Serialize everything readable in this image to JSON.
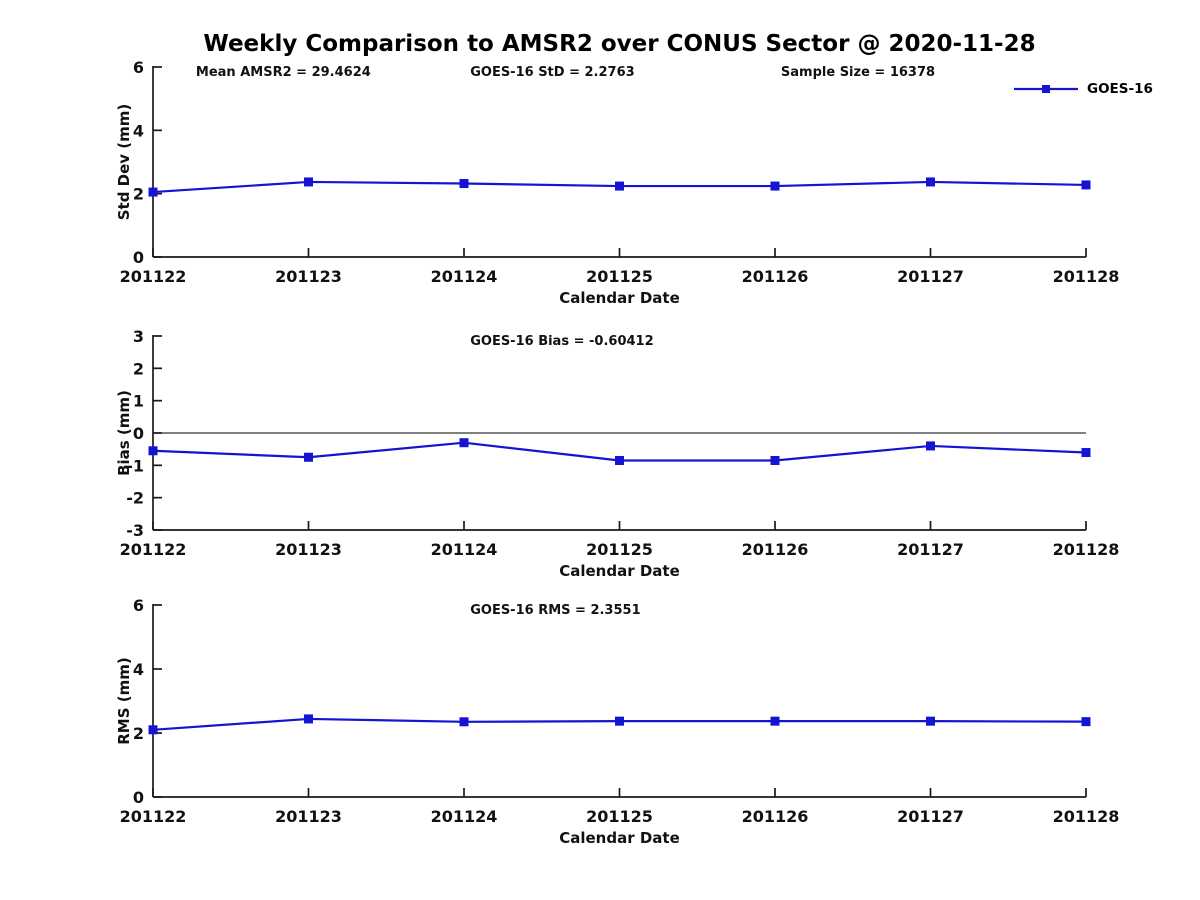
{
  "title": "Weekly Comparison to AMSR2 over CONUS Sector @ 2020-11-28",
  "legend": {
    "label": "GOES-16"
  },
  "colors": {
    "line": "#1414d2",
    "axis": "#1a1a1a",
    "text": "#111111",
    "zero_line": "#333333",
    "background": "#ffffff"
  },
  "x_axis": {
    "label": "Calendar Date",
    "ticks": [
      "201122",
      "201123",
      "201124",
      "201125",
      "201126",
      "201127",
      "201128"
    ]
  },
  "chart_data": [
    {
      "id": "stddev",
      "type": "line",
      "ylabel": "Std Dev (mm)",
      "xlabel": "Calendar Date",
      "categories": [
        "201122",
        "201123",
        "201124",
        "201125",
        "201126",
        "201127",
        "201128"
      ],
      "series": [
        {
          "name": "GOES-16",
          "values": [
            2.05,
            2.37,
            2.32,
            2.24,
            2.24,
            2.37,
            2.2763
          ]
        }
      ],
      "ylim": [
        0,
        6
      ],
      "yticks": [
        0,
        2,
        4,
        6
      ],
      "zero_line": false,
      "grid": false,
      "legend_position": "top-right",
      "annotations": [
        "Mean AMSR2 = 29.4624",
        "GOES-16 StD = 2.2763",
        "Sample Size = 16378"
      ]
    },
    {
      "id": "bias",
      "type": "line",
      "ylabel": "Bias (mm)",
      "xlabel": "Calendar Date",
      "categories": [
        "201122",
        "201123",
        "201124",
        "201125",
        "201126",
        "201127",
        "201128"
      ],
      "series": [
        {
          "name": "GOES-16",
          "values": [
            -0.55,
            -0.75,
            -0.3,
            -0.85,
            -0.85,
            -0.4,
            -0.60412
          ]
        }
      ],
      "ylim": [
        -3,
        3
      ],
      "yticks": [
        -3,
        -2,
        -1,
        0,
        1,
        2,
        3
      ],
      "zero_line": true,
      "grid": false,
      "annotations": [
        "GOES-16 Bias  = -0.60412"
      ]
    },
    {
      "id": "rms",
      "type": "line",
      "ylabel": "RMS (mm)",
      "xlabel": "Calendar Date",
      "categories": [
        "201122",
        "201123",
        "201124",
        "201125",
        "201126",
        "201127",
        "201128"
      ],
      "series": [
        {
          "name": "GOES-16",
          "values": [
            2.1,
            2.44,
            2.35,
            2.37,
            2.37,
            2.37,
            2.3551
          ]
        }
      ],
      "ylim": [
        0,
        6
      ],
      "yticks": [
        0,
        2,
        4,
        6
      ],
      "zero_line": false,
      "grid": false,
      "annotations": [
        "GOES-16 RMS = 2.3551"
      ]
    }
  ]
}
